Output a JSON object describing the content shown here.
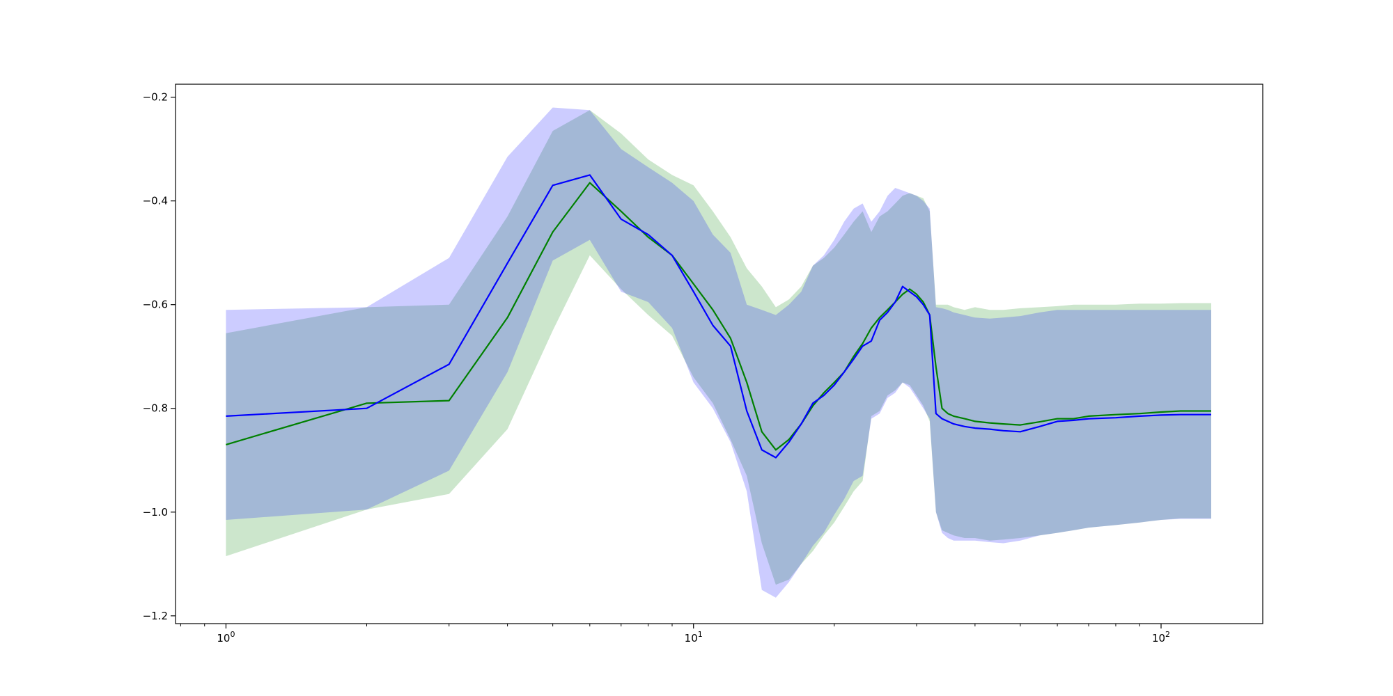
{
  "chart_data": {
    "type": "area",
    "title": "",
    "xlabel": "",
    "ylabel": "",
    "x_scale": "log",
    "xlim": [
      0.78,
      165
    ],
    "ylim": [
      -1.215,
      -0.175
    ],
    "legend": "none",
    "grid": false,
    "x_ticks": [
      {
        "value": 1,
        "base": "10",
        "exp": "0"
      },
      {
        "value": 10,
        "base": "10",
        "exp": "1"
      },
      {
        "value": 100,
        "base": "10",
        "exp": "2"
      }
    ],
    "y_ticks": [
      {
        "value": -0.2,
        "label": "−0.2"
      },
      {
        "value": -0.4,
        "label": "−0.4"
      },
      {
        "value": -0.6,
        "label": "−0.6"
      },
      {
        "value": -0.8,
        "label": "−0.8"
      },
      {
        "value": -1.0,
        "label": "−1.0"
      },
      {
        "value": -1.2,
        "label": "−1.2"
      }
    ],
    "series": [
      {
        "color": "#008000",
        "band_color": "#008000",
        "band_opacity": 0.2,
        "x": [
          1,
          2,
          3,
          4,
          5,
          6,
          7,
          8,
          9,
          10,
          11,
          12,
          13,
          14,
          15,
          16,
          17,
          18,
          19,
          20,
          21,
          22,
          23,
          24,
          25,
          26,
          27,
          28,
          29,
          30,
          31,
          32,
          33,
          34,
          35,
          36,
          38,
          40,
          43,
          46,
          50,
          55,
          60,
          65,
          70,
          80,
          90,
          100,
          110,
          128
        ],
        "mean": [
          -0.87,
          -0.79,
          -0.785,
          -0.625,
          -0.46,
          -0.365,
          -0.42,
          -0.47,
          -0.505,
          -0.56,
          -0.61,
          -0.665,
          -0.75,
          -0.845,
          -0.88,
          -0.86,
          -0.83,
          -0.795,
          -0.77,
          -0.75,
          -0.73,
          -0.7,
          -0.675,
          -0.645,
          -0.625,
          -0.61,
          -0.595,
          -0.58,
          -0.57,
          -0.58,
          -0.595,
          -0.62,
          -0.72,
          -0.8,
          -0.81,
          -0.815,
          -0.82,
          -0.825,
          -0.828,
          -0.83,
          -0.832,
          -0.826,
          -0.82,
          -0.82,
          -0.815,
          -0.812,
          -0.81,
          -0.807,
          -0.805,
          -0.805
        ],
        "upper": [
          -0.655,
          -0.605,
          -0.6,
          -0.43,
          -0.265,
          -0.225,
          -0.27,
          -0.32,
          -0.35,
          -0.37,
          -0.42,
          -0.47,
          -0.53,
          -0.565,
          -0.605,
          -0.59,
          -0.565,
          -0.525,
          -0.51,
          -0.49,
          -0.465,
          -0.44,
          -0.42,
          -0.46,
          -0.43,
          -0.42,
          -0.405,
          -0.39,
          -0.385,
          -0.39,
          -0.395,
          -0.42,
          -0.6,
          -0.6,
          -0.6,
          -0.605,
          -0.61,
          -0.605,
          -0.61,
          -0.61,
          -0.607,
          -0.605,
          -0.603,
          -0.6,
          -0.6,
          -0.6,
          -0.598,
          -0.598,
          -0.597,
          -0.597
        ],
        "lower": [
          -1.085,
          -0.995,
          -0.965,
          -0.84,
          -0.65,
          -0.505,
          -0.57,
          -0.62,
          -0.66,
          -0.74,
          -0.79,
          -0.86,
          -0.93,
          -1.06,
          -1.14,
          -1.13,
          -1.1,
          -1.075,
          -1.045,
          -1.02,
          -0.99,
          -0.96,
          -0.94,
          -0.815,
          -0.805,
          -0.775,
          -0.765,
          -0.75,
          -0.755,
          -0.775,
          -0.795,
          -0.825,
          -1.0,
          -1.035,
          -1.04,
          -1.045,
          -1.05,
          -1.05,
          -1.055,
          -1.053,
          -1.05,
          -1.045,
          -1.04,
          -1.035,
          -1.03,
          -1.025,
          -1.02,
          -1.015,
          -1.012,
          -1.012
        ]
      },
      {
        "color": "#0000ff",
        "band_color": "#0000ff",
        "band_opacity": 0.2,
        "x": [
          1,
          2,
          3,
          4,
          5,
          6,
          7,
          8,
          9,
          10,
          11,
          12,
          13,
          14,
          15,
          16,
          17,
          18,
          19,
          20,
          21,
          22,
          23,
          24,
          25,
          26,
          27,
          28,
          29,
          30,
          31,
          32,
          33,
          34,
          35,
          36,
          38,
          40,
          43,
          46,
          50,
          55,
          60,
          65,
          70,
          80,
          90,
          100,
          110,
          128
        ],
        "mean": [
          -0.815,
          -0.8,
          -0.715,
          -0.52,
          -0.37,
          -0.35,
          -0.435,
          -0.465,
          -0.505,
          -0.575,
          -0.64,
          -0.68,
          -0.805,
          -0.88,
          -0.895,
          -0.865,
          -0.83,
          -0.79,
          -0.775,
          -0.755,
          -0.73,
          -0.705,
          -0.68,
          -0.67,
          -0.63,
          -0.615,
          -0.595,
          -0.565,
          -0.575,
          -0.585,
          -0.6,
          -0.62,
          -0.81,
          -0.82,
          -0.825,
          -0.83,
          -0.835,
          -0.838,
          -0.84,
          -0.843,
          -0.845,
          -0.835,
          -0.825,
          -0.823,
          -0.82,
          -0.818,
          -0.815,
          -0.813,
          -0.812,
          -0.812
        ],
        "upper": [
          -0.61,
          -0.605,
          -0.51,
          -0.315,
          -0.22,
          -0.225,
          -0.3,
          -0.335,
          -0.365,
          -0.4,
          -0.465,
          -0.5,
          -0.6,
          -0.61,
          -0.62,
          -0.6,
          -0.575,
          -0.525,
          -0.505,
          -0.475,
          -0.44,
          -0.415,
          -0.405,
          -0.44,
          -0.42,
          -0.39,
          -0.375,
          -0.38,
          -0.385,
          -0.39,
          -0.4,
          -0.415,
          -0.605,
          -0.607,
          -0.61,
          -0.615,
          -0.62,
          -0.625,
          -0.627,
          -0.625,
          -0.622,
          -0.615,
          -0.61,
          -0.61,
          -0.61,
          -0.61,
          -0.61,
          -0.61,
          -0.61,
          -0.61
        ],
        "lower": [
          -1.015,
          -0.995,
          -0.92,
          -0.73,
          -0.515,
          -0.475,
          -0.575,
          -0.595,
          -0.645,
          -0.75,
          -0.8,
          -0.865,
          -0.96,
          -1.15,
          -1.165,
          -1.135,
          -1.1,
          -1.065,
          -1.04,
          -1.005,
          -0.975,
          -0.94,
          -0.93,
          -0.82,
          -0.81,
          -0.78,
          -0.77,
          -0.75,
          -0.76,
          -0.78,
          -0.8,
          -0.82,
          -1.0,
          -1.04,
          -1.05,
          -1.055,
          -1.055,
          -1.055,
          -1.058,
          -1.06,
          -1.055,
          -1.045,
          -1.04,
          -1.035,
          -1.03,
          -1.025,
          -1.02,
          -1.015,
          -1.013,
          -1.013
        ]
      }
    ]
  }
}
